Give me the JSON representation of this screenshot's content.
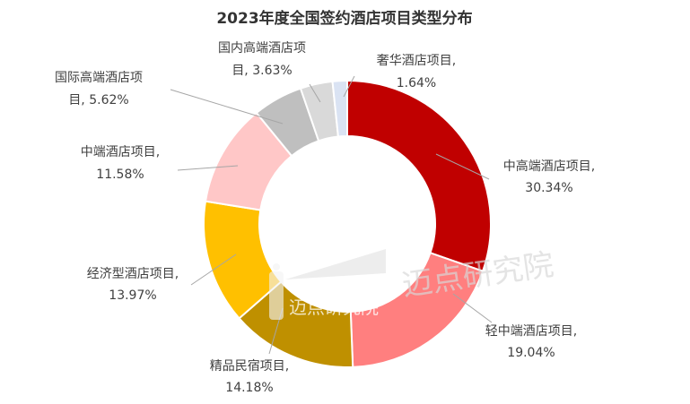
{
  "chart_data": {
    "type": "pie",
    "donut": true,
    "title": "2023年度全国签约酒店项目类型分布",
    "unit": "%",
    "categories": [
      "中高端酒店项目",
      "轻中端酒店项目",
      "精品民宿项目",
      "经济型酒店项目",
      "中端酒店项目",
      "国际高端酒店项目",
      "国内高端酒店项目",
      "奢华酒店项目"
    ],
    "values": [
      30.34,
      19.04,
      14.18,
      13.97,
      11.58,
      5.62,
      3.63,
      1.64
    ],
    "value_labels": [
      "30.34%",
      "19.04%",
      "14.18%",
      "13.97%",
      "11.58%",
      "5.62%",
      "3.63%",
      "1.64%"
    ],
    "colors": [
      "#c00000",
      "#ff7f7f",
      "#bf9000",
      "#ffc000",
      "#ffc7c7",
      "#bfbfbf",
      "#d9d9d9",
      "#dae3f3"
    ],
    "legend": "none",
    "data_labels": "outside with leader lines"
  },
  "watermark": {
    "text": "迈点研究院",
    "logo_text": "迈点研究院"
  }
}
